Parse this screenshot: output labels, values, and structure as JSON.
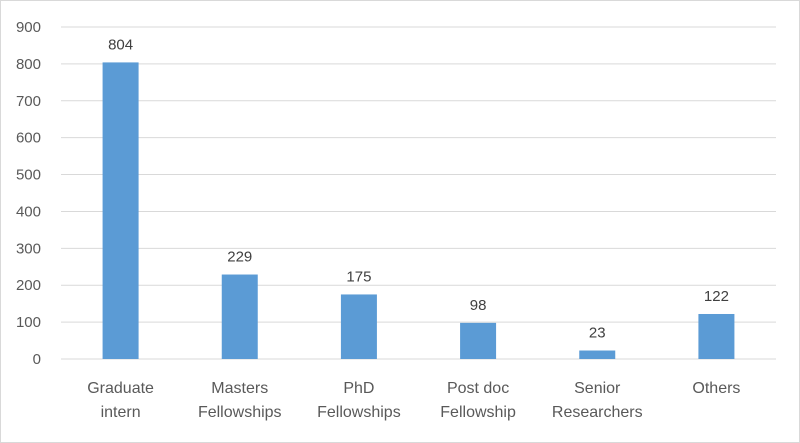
{
  "chart_data": {
    "type": "bar",
    "categories": [
      [
        "Graduate",
        "intern"
      ],
      [
        "Masters",
        "Fellowships"
      ],
      [
        "PhD",
        "Fellowships"
      ],
      [
        "Post doc",
        "Fellowship"
      ],
      [
        "Senior",
        "Researchers"
      ],
      [
        "Others"
      ]
    ],
    "values": [
      804,
      229,
      175,
      98,
      23,
      122
    ],
    "data_labels": [
      "804",
      "229",
      "175",
      "98",
      "23",
      "122"
    ],
    "ylim": [
      0,
      900
    ],
    "yticks": [
      0,
      100,
      200,
      300,
      400,
      500,
      600,
      700,
      800,
      900
    ],
    "title": "",
    "xlabel": "",
    "ylabel": "",
    "grid": true,
    "legend": "none",
    "bar_color": "#5b9bd5"
  }
}
